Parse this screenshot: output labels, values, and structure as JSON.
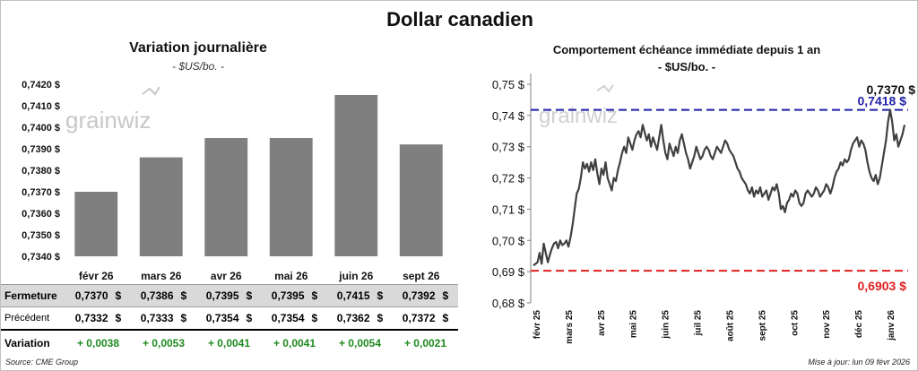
{
  "title": "Dollar canadien",
  "footer": {
    "source": "Source: CME Group",
    "updated": "Mise à jour: lun 09 févr 2026"
  },
  "watermark": "grainwiz",
  "chart_data": [
    {
      "type": "bar",
      "title": "Variation  journalière",
      "subtitle": "- $US/bo. -",
      "categories": [
        "févr 26",
        "mars 26",
        "avr 26",
        "mai 26",
        "juin 26",
        "sept 26"
      ],
      "values": [
        0.737,
        0.7386,
        0.7395,
        0.7395,
        0.7415,
        0.7392
      ],
      "ylim": [
        0.734,
        0.742
      ],
      "yticks": [
        "0,7420 $",
        "0,7410 $",
        "0,7400 $",
        "0,7390 $",
        "0,7380 $",
        "0,7370 $",
        "0,7360 $",
        "0,7350 $",
        "0,7340 $"
      ],
      "bar_color": "#7f7f7f",
      "grid": false
    },
    {
      "type": "line",
      "title": "Comportement échéance immédiate depuis 1 an",
      "subtitle": "- $US/bo. -",
      "ylim": [
        0.68,
        0.75
      ],
      "yticks": [
        "0,75 $",
        "0,74 $",
        "0,73 $",
        "0,72 $",
        "0,71 $",
        "0,70 $",
        "0,69 $",
        "0,68 $"
      ],
      "xticks": [
        "févr 25",
        "mars 25",
        "avr 25",
        "mai 25",
        "juin 25",
        "juil 25",
        "août 25",
        "sept 25",
        "oct 25",
        "nov 25",
        "déc 25",
        "janv 26"
      ],
      "last_label": "0,7370 $",
      "high": {
        "value": 0.7418,
        "label": "0,7418 $",
        "color": "#1f1fa8"
      },
      "low": {
        "value": 0.6903,
        "label": "0,6903 $",
        "color": "#e02020"
      },
      "line_color": "#404040",
      "series_values": [
        0.692,
        0.6925,
        0.693,
        0.696,
        0.6925,
        0.699,
        0.696,
        0.693,
        0.6955,
        0.6975,
        0.699,
        0.6995,
        0.6975,
        0.7,
        0.6985,
        0.699,
        0.7,
        0.698,
        0.701,
        0.705,
        0.71,
        0.715,
        0.7165,
        0.72,
        0.725,
        0.723,
        0.7245,
        0.722,
        0.725,
        0.7225,
        0.726,
        0.7215,
        0.718,
        0.723,
        0.721,
        0.725,
        0.72,
        0.718,
        0.716,
        0.72,
        0.719,
        0.7225,
        0.725,
        0.728,
        0.73,
        0.728,
        0.733,
        0.731,
        0.729,
        0.732,
        0.734,
        0.735,
        0.733,
        0.737,
        0.7345,
        0.732,
        0.734,
        0.73,
        0.733,
        0.731,
        0.729,
        0.733,
        0.737,
        0.732,
        0.728,
        0.726,
        0.731,
        0.729,
        0.727,
        0.73,
        0.728,
        0.732,
        0.734,
        0.731,
        0.728,
        0.726,
        0.723,
        0.725,
        0.727,
        0.73,
        0.728,
        0.726,
        0.727,
        0.729,
        0.73,
        0.729,
        0.727,
        0.726,
        0.728,
        0.73,
        0.729,
        0.728,
        0.73,
        0.732,
        0.731,
        0.729,
        0.728,
        0.727,
        0.725,
        0.723,
        0.722,
        0.72,
        0.719,
        0.718,
        0.716,
        0.715,
        0.717,
        0.714,
        0.716,
        0.715,
        0.717,
        0.714,
        0.715,
        0.716,
        0.713,
        0.715,
        0.717,
        0.716,
        0.718,
        0.715,
        0.71,
        0.711,
        0.709,
        0.712,
        0.713,
        0.715,
        0.714,
        0.716,
        0.715,
        0.712,
        0.711,
        0.712,
        0.715,
        0.716,
        0.715,
        0.714,
        0.715,
        0.717,
        0.716,
        0.714,
        0.715,
        0.716,
        0.718,
        0.717,
        0.715,
        0.717,
        0.72,
        0.722,
        0.723,
        0.725,
        0.724,
        0.726,
        0.725,
        0.726,
        0.729,
        0.731,
        0.732,
        0.733,
        0.73,
        0.732,
        0.731,
        0.729,
        0.725,
        0.722,
        0.72,
        0.719,
        0.721,
        0.718,
        0.72,
        0.724,
        0.728,
        0.732,
        0.738,
        0.7418,
        0.738,
        0.732,
        0.734,
        0.73,
        0.732,
        0.734,
        0.737
      ]
    }
  ],
  "table": {
    "rows": [
      {
        "label": "Fermeture",
        "values": [
          "0,7370",
          "0,7386",
          "0,7395",
          "0,7395",
          "0,7415",
          "0,7392"
        ],
        "unit": "$"
      },
      {
        "label": "Précédent",
        "values": [
          "0,7332",
          "0,7333",
          "0,7354",
          "0,7354",
          "0,7362",
          "0,7372"
        ],
        "unit": "$"
      },
      {
        "label": "Variation",
        "values": [
          "+ 0,0038",
          "+ 0,0053",
          "+ 0,0041",
          "+ 0,0041",
          "+ 0,0054",
          "+ 0,0021"
        ],
        "unit": ""
      }
    ]
  }
}
